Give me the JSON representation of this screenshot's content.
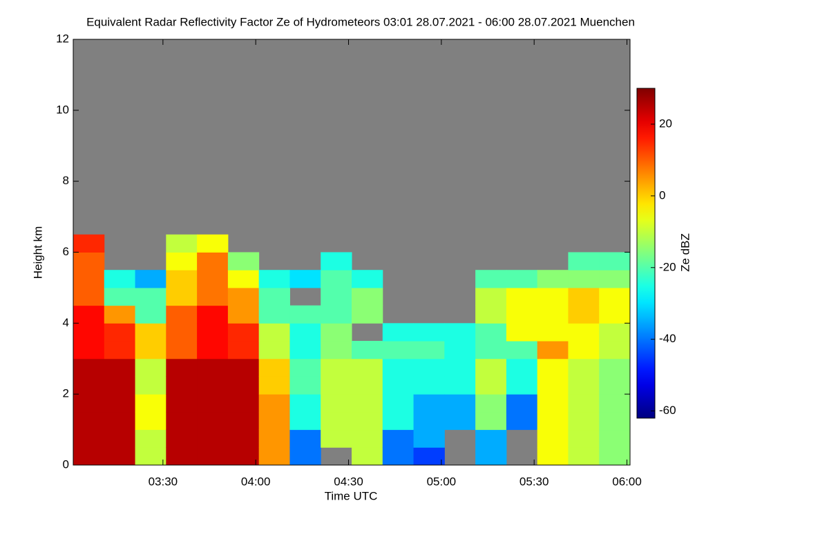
{
  "chart_data": {
    "type": "heatmap",
    "title": "Equivalent Radar Reflectivity Factor Ze of Hydrometeors   03:01 28.07.2021 - 06:00 28.07.2021 Muenchen",
    "x_label": "Time UTC",
    "y_label": "Height km",
    "xlim": [
      181,
      361
    ],
    "xticks": [
      {
        "value": 210,
        "label": "03:30"
      },
      {
        "value": 240,
        "label": "04:00"
      },
      {
        "value": 270,
        "label": "04:30"
      },
      {
        "value": 300,
        "label": "05:00"
      },
      {
        "value": 330,
        "label": "05:30"
      },
      {
        "value": 360,
        "label": "06:00"
      }
    ],
    "ylim": [
      0,
      12
    ],
    "yticks": [
      0,
      2,
      4,
      6,
      8,
      10,
      12
    ],
    "background": "#808080",
    "x": [
      181,
      191,
      201,
      211,
      221,
      231,
      241,
      251,
      261,
      271,
      281,
      291,
      301,
      311,
      321,
      331,
      341,
      351
    ],
    "y": [
      0,
      0.5,
      1,
      1.5,
      2,
      2.5,
      3,
      3.5,
      4,
      4.5,
      5,
      5.5,
      6
    ],
    "z": [
      [
        25,
        25,
        25,
        25,
        25,
        25,
        18,
        18,
        18,
        10,
        10,
        10,
        15
      ],
      [
        25,
        25,
        25,
        25,
        25,
        25,
        15,
        15,
        5,
        -20,
        -25,
        null,
        null
      ],
      [
        -10,
        -10,
        -5,
        -5,
        -10,
        -10,
        0,
        0,
        -20,
        -20,
        -35,
        null,
        null
      ],
      [
        25,
        25,
        25,
        25,
        25,
        25,
        10,
        10,
        10,
        0,
        0,
        -5,
        -10
      ],
      [
        25,
        25,
        25,
        25,
        25,
        25,
        18,
        18,
        18,
        8,
        8,
        8,
        -5
      ],
      [
        25,
        25,
        25,
        25,
        25,
        25,
        15,
        15,
        5,
        5,
        -5,
        -15,
        null
      ],
      [
        5,
        5,
        5,
        5,
        0,
        0,
        -10,
        -10,
        -20,
        -20,
        -25,
        null,
        null
      ],
      [
        -40,
        -40,
        -25,
        -25,
        -20,
        -20,
        -25,
        -25,
        -20,
        null,
        -30,
        null,
        null
      ],
      [
        null,
        -10,
        -10,
        -10,
        -10,
        -10,
        -15,
        -15,
        -20,
        -20,
        -20,
        -25,
        null
      ],
      [
        -10,
        -10,
        -10,
        -10,
        -10,
        -10,
        -20,
        null,
        -15,
        -15,
        -25,
        null,
        null
      ],
      [
        -40,
        -40,
        -25,
        -25,
        -25,
        -25,
        -20,
        -25,
        null,
        null,
        null,
        null,
        null
      ],
      [
        -45,
        -35,
        -35,
        -35,
        -25,
        -25,
        -20,
        -25,
        null,
        null,
        null,
        null,
        null
      ],
      [
        null,
        null,
        -35,
        -35,
        -25,
        -25,
        -25,
        -25,
        null,
        null,
        null,
        null,
        null
      ],
      [
        -35,
        -35,
        -15,
        -15,
        -10,
        -10,
        -20,
        -20,
        -10,
        -10,
        -20,
        null,
        null
      ],
      [
        null,
        null,
        -40,
        -40,
        -25,
        -25,
        -20,
        -5,
        -5,
        -5,
        -20,
        null,
        null
      ],
      [
        -5,
        -5,
        -5,
        -5,
        -5,
        -5,
        5,
        -5,
        -5,
        -5,
        -15,
        null,
        null
      ],
      [
        -10,
        -10,
        -10,
        -10,
        -10,
        -10,
        -5,
        -5,
        0,
        0,
        -15,
        -20,
        null
      ],
      [
        -15,
        -15,
        -15,
        -15,
        -15,
        -15,
        -10,
        -10,
        -5,
        -5,
        -15,
        -20,
        null
      ]
    ],
    "colorbar": {
      "label": "Ze dBZ",
      "colormap": "jet",
      "lim": [
        -62,
        30
      ],
      "ticks": [
        20,
        0,
        -20,
        -40,
        -60
      ]
    }
  }
}
